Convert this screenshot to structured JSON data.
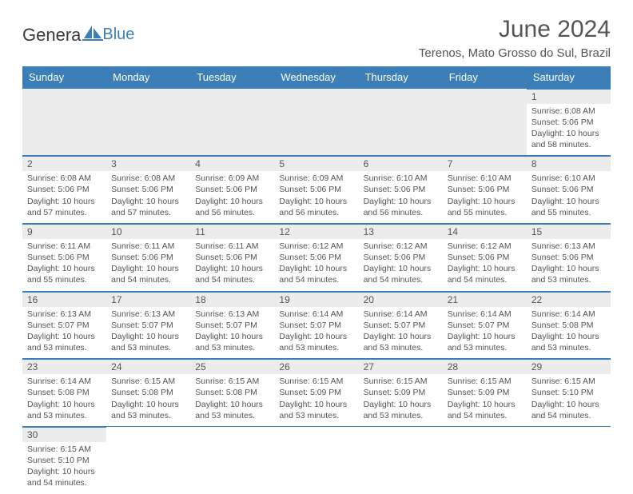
{
  "logo": {
    "general": "Genera",
    "blue": "Blue"
  },
  "title": "June 2024",
  "location": "Terenos, Mato Grosso do Sul, Brazil",
  "colors": {
    "header_bg": "#3c7fb8",
    "header_text": "#ffffff",
    "daynum_bg": "#ececec",
    "border": "#3c7fb8",
    "text": "#555555",
    "page_bg": "#ffffff"
  },
  "typography": {
    "title_fontsize": 30,
    "location_fontsize": 15,
    "header_fontsize": 13,
    "daynum_fontsize": 12,
    "content_fontsize": 10.5
  },
  "dayNames": [
    "Sunday",
    "Monday",
    "Tuesday",
    "Wednesday",
    "Thursday",
    "Friday",
    "Saturday"
  ],
  "weeks": [
    [
      null,
      null,
      null,
      null,
      null,
      null,
      {
        "n": "1",
        "sunrise": "6:08 AM",
        "sunset": "5:06 PM",
        "dl": "10 hours and 58 minutes."
      }
    ],
    [
      {
        "n": "2",
        "sunrise": "6:08 AM",
        "sunset": "5:06 PM",
        "dl": "10 hours and 57 minutes."
      },
      {
        "n": "3",
        "sunrise": "6:08 AM",
        "sunset": "5:06 PM",
        "dl": "10 hours and 57 minutes."
      },
      {
        "n": "4",
        "sunrise": "6:09 AM",
        "sunset": "5:06 PM",
        "dl": "10 hours and 56 minutes."
      },
      {
        "n": "5",
        "sunrise": "6:09 AM",
        "sunset": "5:06 PM",
        "dl": "10 hours and 56 minutes."
      },
      {
        "n": "6",
        "sunrise": "6:10 AM",
        "sunset": "5:06 PM",
        "dl": "10 hours and 56 minutes."
      },
      {
        "n": "7",
        "sunrise": "6:10 AM",
        "sunset": "5:06 PM",
        "dl": "10 hours and 55 minutes."
      },
      {
        "n": "8",
        "sunrise": "6:10 AM",
        "sunset": "5:06 PM",
        "dl": "10 hours and 55 minutes."
      }
    ],
    [
      {
        "n": "9",
        "sunrise": "6:11 AM",
        "sunset": "5:06 PM",
        "dl": "10 hours and 55 minutes."
      },
      {
        "n": "10",
        "sunrise": "6:11 AM",
        "sunset": "5:06 PM",
        "dl": "10 hours and 54 minutes."
      },
      {
        "n": "11",
        "sunrise": "6:11 AM",
        "sunset": "5:06 PM",
        "dl": "10 hours and 54 minutes."
      },
      {
        "n": "12",
        "sunrise": "6:12 AM",
        "sunset": "5:06 PM",
        "dl": "10 hours and 54 minutes."
      },
      {
        "n": "13",
        "sunrise": "6:12 AM",
        "sunset": "5:06 PM",
        "dl": "10 hours and 54 minutes."
      },
      {
        "n": "14",
        "sunrise": "6:12 AM",
        "sunset": "5:06 PM",
        "dl": "10 hours and 54 minutes."
      },
      {
        "n": "15",
        "sunrise": "6:13 AM",
        "sunset": "5:06 PM",
        "dl": "10 hours and 53 minutes."
      }
    ],
    [
      {
        "n": "16",
        "sunrise": "6:13 AM",
        "sunset": "5:07 PM",
        "dl": "10 hours and 53 minutes."
      },
      {
        "n": "17",
        "sunrise": "6:13 AM",
        "sunset": "5:07 PM",
        "dl": "10 hours and 53 minutes."
      },
      {
        "n": "18",
        "sunrise": "6:13 AM",
        "sunset": "5:07 PM",
        "dl": "10 hours and 53 minutes."
      },
      {
        "n": "19",
        "sunrise": "6:14 AM",
        "sunset": "5:07 PM",
        "dl": "10 hours and 53 minutes."
      },
      {
        "n": "20",
        "sunrise": "6:14 AM",
        "sunset": "5:07 PM",
        "dl": "10 hours and 53 minutes."
      },
      {
        "n": "21",
        "sunrise": "6:14 AM",
        "sunset": "5:07 PM",
        "dl": "10 hours and 53 minutes."
      },
      {
        "n": "22",
        "sunrise": "6:14 AM",
        "sunset": "5:08 PM",
        "dl": "10 hours and 53 minutes."
      }
    ],
    [
      {
        "n": "23",
        "sunrise": "6:14 AM",
        "sunset": "5:08 PM",
        "dl": "10 hours and 53 minutes."
      },
      {
        "n": "24",
        "sunrise": "6:15 AM",
        "sunset": "5:08 PM",
        "dl": "10 hours and 53 minutes."
      },
      {
        "n": "25",
        "sunrise": "6:15 AM",
        "sunset": "5:08 PM",
        "dl": "10 hours and 53 minutes."
      },
      {
        "n": "26",
        "sunrise": "6:15 AM",
        "sunset": "5:09 PM",
        "dl": "10 hours and 53 minutes."
      },
      {
        "n": "27",
        "sunrise": "6:15 AM",
        "sunset": "5:09 PM",
        "dl": "10 hours and 53 minutes."
      },
      {
        "n": "28",
        "sunrise": "6:15 AM",
        "sunset": "5:09 PM",
        "dl": "10 hours and 54 minutes."
      },
      {
        "n": "29",
        "sunrise": "6:15 AM",
        "sunset": "5:10 PM",
        "dl": "10 hours and 54 minutes."
      }
    ],
    [
      {
        "n": "30",
        "sunrise": "6:15 AM",
        "sunset": "5:10 PM",
        "dl": "10 hours and 54 minutes."
      },
      null,
      null,
      null,
      null,
      null,
      null
    ]
  ],
  "labels": {
    "sunrise": "Sunrise: ",
    "sunset": "Sunset: ",
    "daylight": "Daylight: "
  }
}
